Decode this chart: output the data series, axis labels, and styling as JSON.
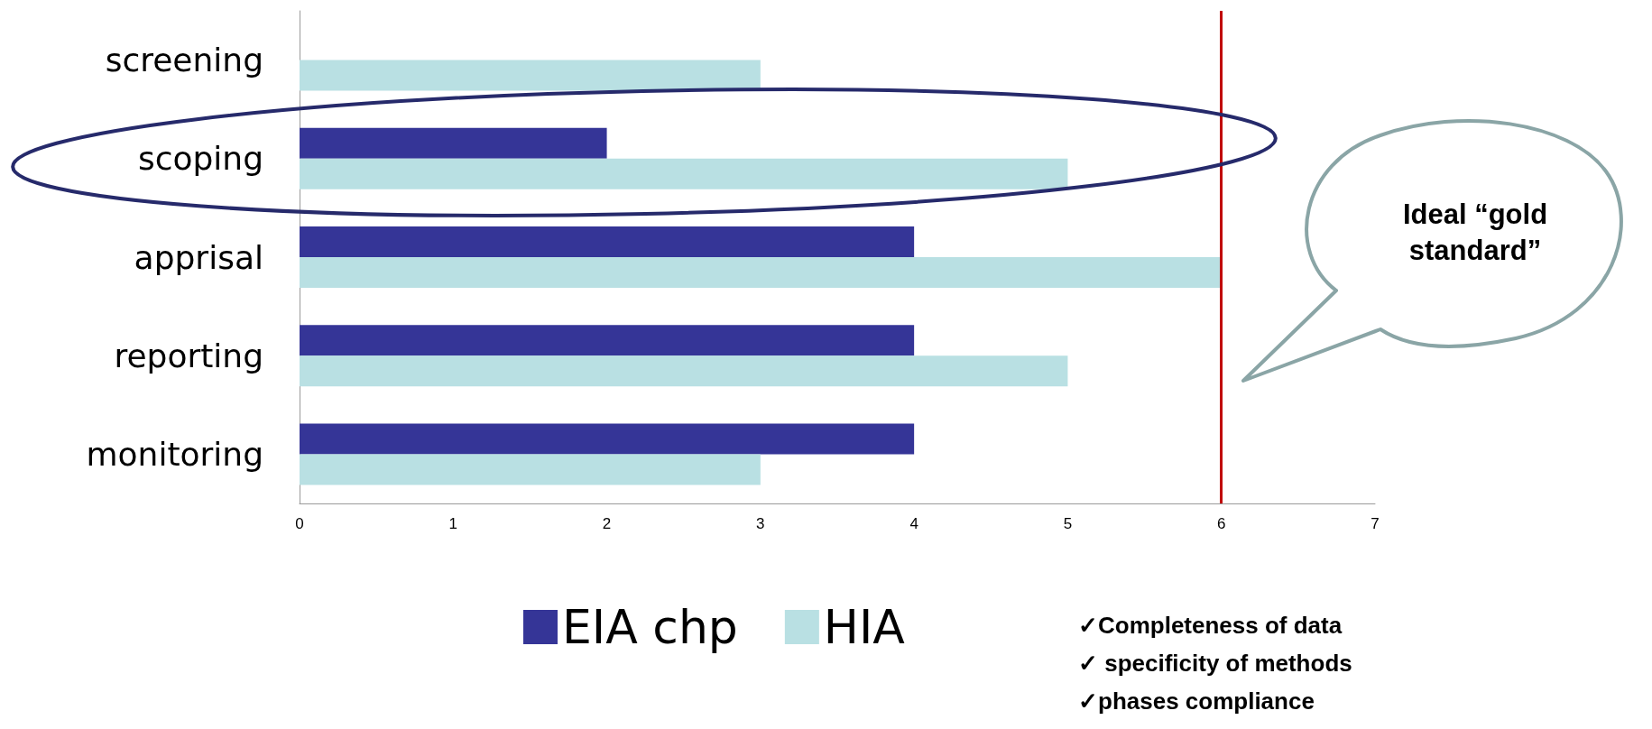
{
  "chart_data": {
    "type": "bar",
    "orientation": "horizontal",
    "categories": [
      "screening",
      "scoping",
      "apprisal",
      "reporting",
      "monitoring"
    ],
    "series": [
      {
        "name": "EIA chp",
        "color": "#353597",
        "values": [
          0,
          2,
          4,
          4,
          4
        ]
      },
      {
        "name": "HIA",
        "color": "#b9e0e3",
        "values": [
          3,
          5,
          6,
          5,
          3
        ]
      }
    ],
    "xlim": [
      0,
      7
    ],
    "xticks": [
      0,
      1,
      2,
      3,
      4,
      5,
      6,
      7
    ],
    "grid": false,
    "legend": "bottom",
    "ref_lines": [
      {
        "axis": "x",
        "value": 6,
        "color": "#c00000"
      }
    ],
    "annotations": [
      "Ideal “gold standard”",
      "✓Completeness of data",
      "✓ specificity of methods",
      "✓phases compliance"
    ]
  }
}
